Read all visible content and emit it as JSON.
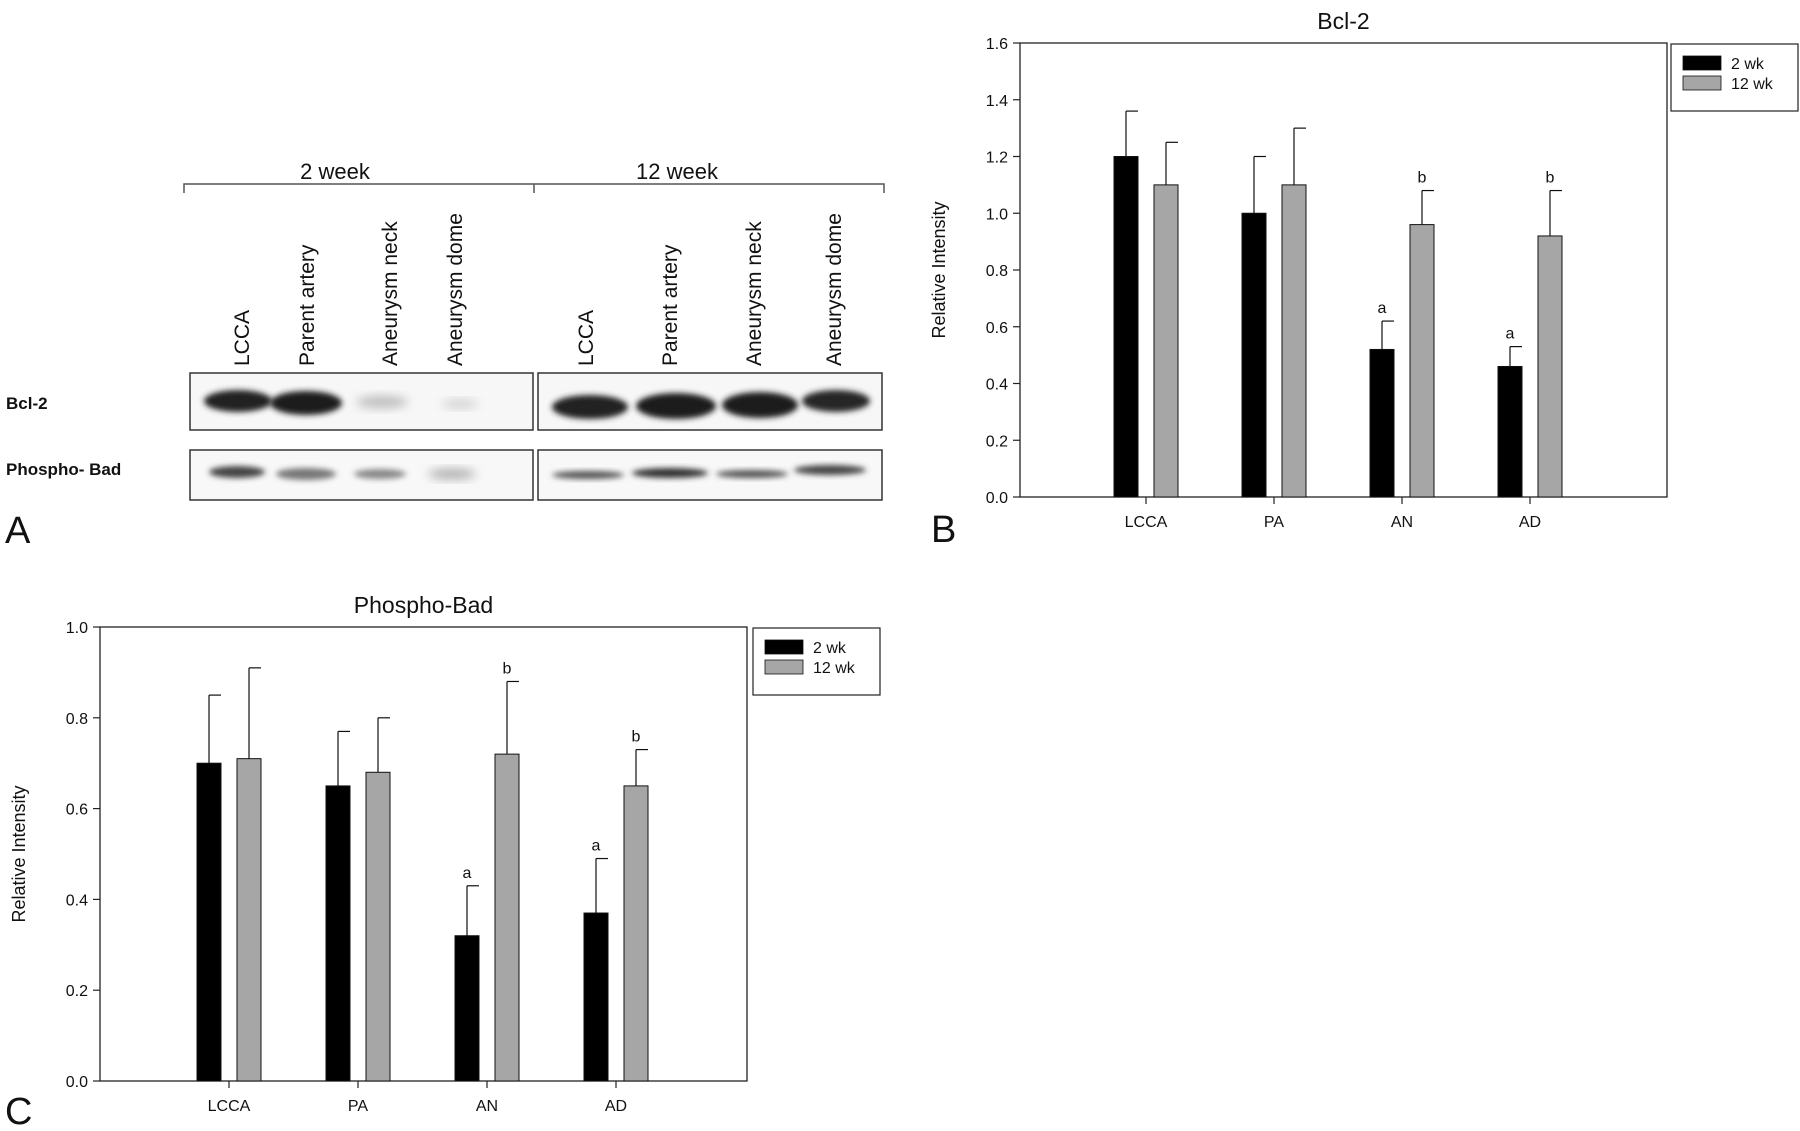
{
  "panel_labels": {
    "a": "A",
    "b": "B",
    "c": "C"
  },
  "blot": {
    "groups": [
      "2 week",
      "12 week"
    ],
    "lanes": [
      "LCCA",
      "Parent artery",
      "Aneurysm neck",
      "Aneurysm dome",
      "LCCA",
      "Parent artery",
      "Aneurysm neck",
      "Aneurysm dome"
    ],
    "rows": [
      "Bcl-2",
      "Phospho- Bad"
    ]
  },
  "chart_data": [
    {
      "type": "bar",
      "title": "Bcl-2",
      "xlabel": "",
      "ylabel": "Relative Intensity",
      "categories": [
        "LCCA",
        "PA",
        "AN",
        "AD"
      ],
      "ylim": [
        0,
        1.6
      ],
      "yticks": [
        "0.0",
        "0.2",
        "0.4",
        "0.6",
        "0.8",
        "1.0",
        "1.2",
        "1.4",
        "1.6"
      ],
      "legend_position": "top-right",
      "series": [
        {
          "name": "2 wk",
          "color": "#000000",
          "values": [
            1.2,
            1.0,
            0.52,
            0.46
          ],
          "errors": [
            0.16,
            0.2,
            0.1,
            0.07
          ],
          "annotations": [
            "",
            "",
            "a",
            "a"
          ]
        },
        {
          "name": "12 wk",
          "color": "#a6a6a6",
          "values": [
            1.1,
            1.1,
            0.96,
            0.92
          ],
          "errors": [
            0.15,
            0.2,
            0.12,
            0.16
          ],
          "annotations": [
            "",
            "",
            "b",
            "b"
          ]
        }
      ]
    },
    {
      "type": "bar",
      "title": "Phospho-Bad",
      "xlabel": "",
      "ylabel": "Relative Intensity",
      "categories": [
        "LCCA",
        "PA",
        "AN",
        "AD"
      ],
      "ylim": [
        0,
        1.0
      ],
      "yticks": [
        "0.0",
        "0.2",
        "0.4",
        "0.6",
        "0.8",
        "1.0"
      ],
      "legend_position": "top-right",
      "series": [
        {
          "name": "2 wk",
          "color": "#000000",
          "values": [
            0.7,
            0.65,
            0.32,
            0.37
          ],
          "errors": [
            0.15,
            0.12,
            0.11,
            0.12
          ],
          "annotations": [
            "",
            "",
            "a",
            "a"
          ]
        },
        {
          "name": "12 wk",
          "color": "#a6a6a6",
          "values": [
            0.71,
            0.68,
            0.72,
            0.65
          ],
          "errors": [
            0.2,
            0.12,
            0.16,
            0.08
          ],
          "annotations": [
            "",
            "",
            "b",
            "b"
          ]
        }
      ]
    }
  ]
}
